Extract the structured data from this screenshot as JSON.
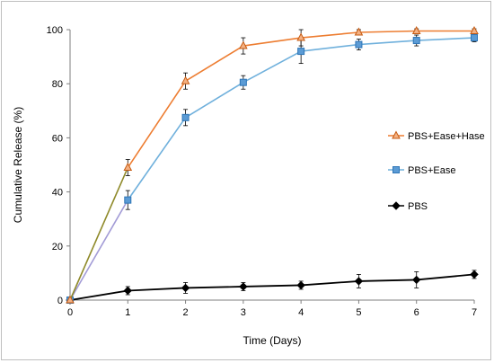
{
  "chart_data": {
    "type": "line",
    "title": "",
    "xlabel": "Time (Days)",
    "ylabel": "Cumulative Release (%)",
    "xlim": [
      0,
      7
    ],
    "ylim": [
      0,
      100
    ],
    "x_ticks": [
      0,
      1,
      2,
      3,
      4,
      5,
      6,
      7
    ],
    "y_ticks": [
      0,
      20,
      40,
      60,
      80,
      100
    ],
    "grid": false,
    "legend_position": "right",
    "x": [
      0,
      1,
      2,
      3,
      4,
      5,
      6,
      7
    ],
    "series": [
      {
        "name": "PBS+Ease+Hase",
        "color": "#ed7d31",
        "marker": "triangle",
        "values": [
          0,
          49,
          81,
          94,
          97,
          99,
          99.5,
          99.5
        ],
        "errors": [
          0,
          3,
          3,
          3,
          3,
          1,
          0.8,
          0.8
        ]
      },
      {
        "name": "PBS+Ease",
        "color": "#6fb0dc",
        "marker": "square",
        "values": [
          0,
          37,
          67.5,
          80.5,
          92,
          94.5,
          96,
          97
        ],
        "errors": [
          0,
          3.5,
          3,
          2.5,
          4.5,
          2,
          2,
          1.5
        ]
      },
      {
        "name": "PBS",
        "color": "#000000",
        "marker": "diamond",
        "values": [
          0,
          3.5,
          4.5,
          5,
          5.5,
          7,
          7.5,
          9.5
        ],
        "errors": [
          0,
          1.5,
          2,
          1.5,
          1.5,
          2.5,
          3,
          1.5
        ]
      }
    ]
  }
}
